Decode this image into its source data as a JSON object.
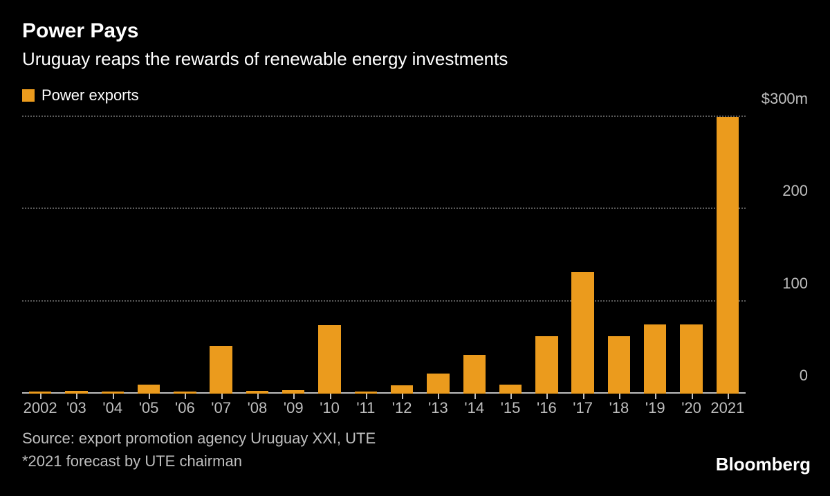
{
  "header": {
    "title": "Power Pays",
    "subtitle": "Uruguay reaps the rewards of renewable energy investments",
    "title_fontsize": 30,
    "subtitle_fontsize": 26
  },
  "legend": {
    "label": "Power exports",
    "swatch_color": "#eb9b1d",
    "label_fontsize": 22
  },
  "chart": {
    "type": "bar",
    "background_color": "#000000",
    "bar_color": "#eb9b1d",
    "grid_color": "#5a5a5a",
    "zero_line_color": "#bfbfbf",
    "axis_label_color": "#bfbfbf",
    "axis_fontsize": 22,
    "ylim": [
      0,
      300
    ],
    "ytick_step": 100,
    "y_tick_labels": [
      "0",
      "100",
      "200",
      "$300m"
    ],
    "bar_width": 0.62,
    "categories": [
      "2002",
      "'03",
      "'04",
      "'05",
      "'06",
      "'07",
      "'08",
      "'09",
      "'10",
      "'11",
      "'12",
      "'13",
      "'14",
      "'15",
      "'16",
      "'17",
      "'18",
      "'19",
      "'20",
      "2021"
    ],
    "values": [
      2,
      3,
      2,
      10,
      2,
      52,
      3,
      4,
      74,
      2,
      9,
      22,
      42,
      10,
      62,
      132,
      62,
      75,
      75,
      300
    ]
  },
  "footer": {
    "source": "Source: export promotion agency Uruguay XXI, UTE",
    "note": "*2021 forecast by UTE chairman",
    "fontsize": 22,
    "color": "#bfbfbf"
  },
  "brand": {
    "text": "Bloomberg",
    "fontsize": 26,
    "color": "#ffffff"
  }
}
